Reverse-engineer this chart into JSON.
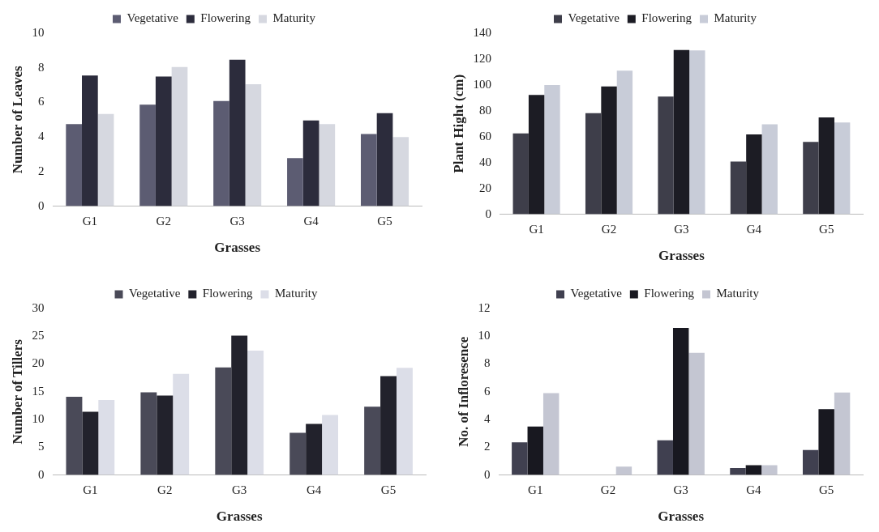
{
  "chart_data": [
    {
      "type": "bar",
      "xlabel": "Grasses",
      "ylabel": "Number of Leaves",
      "categories": [
        "G1",
        "G2",
        "G3",
        "G4",
        "G5"
      ],
      "ylim": [
        0,
        10
      ],
      "yticks": [
        0,
        2,
        4,
        6,
        8,
        10
      ],
      "grid": false,
      "legend": "top",
      "series": [
        {
          "name": "Vegetative",
          "color": "#5c5c72",
          "values": [
            4.75,
            5.87,
            6.08,
            2.78,
            4.17
          ]
        },
        {
          "name": "Flowering",
          "color": "#2c2c3c",
          "values": [
            7.55,
            7.5,
            8.47,
            4.95,
            5.38
          ]
        },
        {
          "name": "Maturity",
          "color": "#d6d8e0",
          "values": [
            5.33,
            8.05,
            7.05,
            4.75,
            4.0
          ]
        }
      ]
    },
    {
      "type": "bar",
      "xlabel": "Grasses",
      "ylabel": "Plant Hight (cm)",
      "categories": [
        "G1",
        "G2",
        "G3",
        "G4",
        "G5"
      ],
      "ylim": [
        0,
        140
      ],
      "yticks": [
        0,
        20,
        40,
        60,
        80,
        100,
        120,
        140
      ],
      "grid": false,
      "legend": "top",
      "series": [
        {
          "name": "Vegetative",
          "color": "#3e3e4a",
          "values": [
            62.5,
            78.2,
            91,
            40.7,
            56
          ]
        },
        {
          "name": "Flowering",
          "color": "#1c1c24",
          "values": [
            92.3,
            98.9,
            127,
            61.8,
            74.9
          ]
        },
        {
          "name": "Maturity",
          "color": "#c8ccd8",
          "values": [
            99.9,
            111,
            126.7,
            69.5,
            70.9
          ]
        }
      ]
    },
    {
      "type": "bar",
      "xlabel": "Grasses",
      "ylabel": "Number of Tillers",
      "categories": [
        "G1",
        "G2",
        "G3",
        "G4",
        "G5"
      ],
      "ylim": [
        0,
        30
      ],
      "yticks": [
        0,
        5,
        10,
        15,
        20,
        25,
        30
      ],
      "grid": false,
      "legend": "top",
      "series": [
        {
          "name": "Vegetative",
          "color": "#4a4a58",
          "values": [
            14.1,
            14.9,
            19.4,
            7.6,
            12.3
          ]
        },
        {
          "name": "Flowering",
          "color": "#22222c",
          "values": [
            11.4,
            14.3,
            25.1,
            9.2,
            17.8
          ]
        },
        {
          "name": "Maturity",
          "color": "#dcdee8",
          "values": [
            13.5,
            18.2,
            22.4,
            10.8,
            19.3
          ]
        }
      ]
    },
    {
      "type": "bar",
      "xlabel": "Grasses",
      "ylabel": "No. of Infloresence",
      "categories": [
        "G1",
        "G2",
        "G3",
        "G4",
        "G5"
      ],
      "ylim": [
        0,
        12
      ],
      "yticks": [
        0,
        2,
        4,
        6,
        8,
        10,
        12
      ],
      "grid": false,
      "legend": "top",
      "series": [
        {
          "name": "Vegetative",
          "color": "#404050",
          "values": [
            2.35,
            0,
            2.5,
            0.5,
            1.8
          ]
        },
        {
          "name": "Flowering",
          "color": "#181820",
          "values": [
            3.5,
            0,
            10.6,
            0.7,
            4.75
          ]
        },
        {
          "name": "Maturity",
          "color": "#c4c6d2",
          "values": [
            5.9,
            0.6,
            8.8,
            0.7,
            5.95
          ]
        }
      ]
    }
  ]
}
